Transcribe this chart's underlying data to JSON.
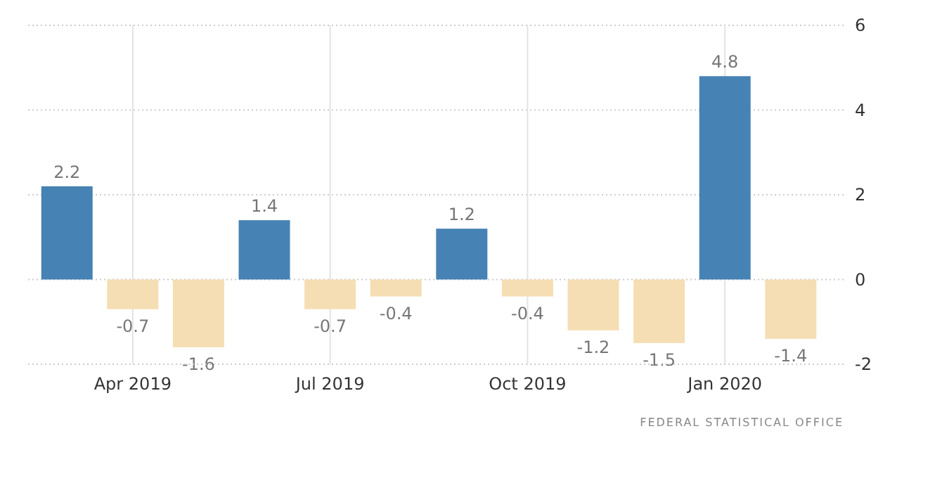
{
  "chart_data": {
    "type": "bar",
    "categories": [
      null,
      "Apr 2019",
      null,
      null,
      "Jul 2019",
      null,
      null,
      "Oct 2019",
      null,
      null,
      "Jan 2020",
      null
    ],
    "values": [
      2.2,
      -0.7,
      -1.6,
      1.4,
      -0.7,
      -0.4,
      1.2,
      -0.4,
      -1.2,
      -1.5,
      4.8,
      -1.4
    ],
    "colors": [
      "#4682b4",
      "#f5deb3",
      "#f5deb3",
      "#4682b4",
      "#f5deb3",
      "#f5deb3",
      "#4682b4",
      "#f5deb3",
      "#f5deb3",
      "#f5deb3",
      "#4682b4",
      "#f5deb3"
    ],
    "ylim": [
      -2,
      6
    ],
    "yticks": [
      -2,
      0,
      2,
      4,
      6
    ],
    "grid": true,
    "data_labels": true,
    "annotations": [
      "FEDERAL STATISTICAL OFFICE"
    ]
  }
}
